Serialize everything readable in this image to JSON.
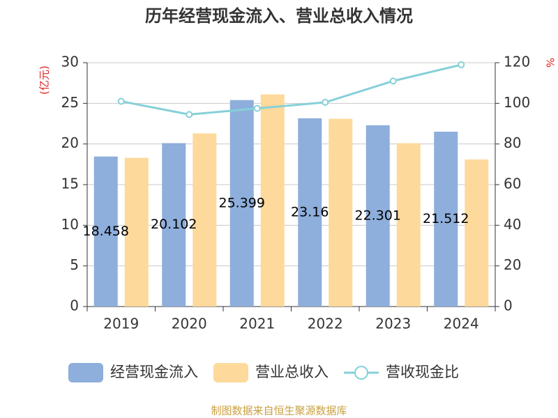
{
  "chart_data": {
    "type": "bar-line",
    "title": "历年经营现金流入、营业总收入情况",
    "y_label": "(亿元)",
    "y2_label": "%",
    "categories": [
      "2019",
      "2020",
      "2021",
      "2022",
      "2023",
      "2024"
    ],
    "series": [
      {
        "name": "经营现金流入",
        "type": "bar",
        "color": "#8eaedb",
        "values": [
          18.458,
          20.102,
          25.399,
          23.16,
          22.301,
          21.512
        ]
      },
      {
        "name": "营业总收入",
        "type": "bar",
        "color": "#fdd99b",
        "values": [
          18.3,
          21.3,
          26.1,
          23.1,
          20.1,
          18.1
        ]
      },
      {
        "name": "营收现金比",
        "type": "line",
        "axis": "y2",
        "color": "#86d0d8",
        "values": [
          101,
          94.5,
          97.5,
          100.5,
          111,
          119
        ]
      }
    ],
    "ylim": [
      0,
      30
    ],
    "yticks": [
      0,
      5,
      10,
      15,
      20,
      25,
      30
    ],
    "y2lim": [
      0,
      120
    ],
    "y2ticks": [
      0,
      20,
      40,
      60,
      80,
      100,
      120
    ],
    "grid": true,
    "source": "制图数据来自恒生聚源数据库"
  }
}
